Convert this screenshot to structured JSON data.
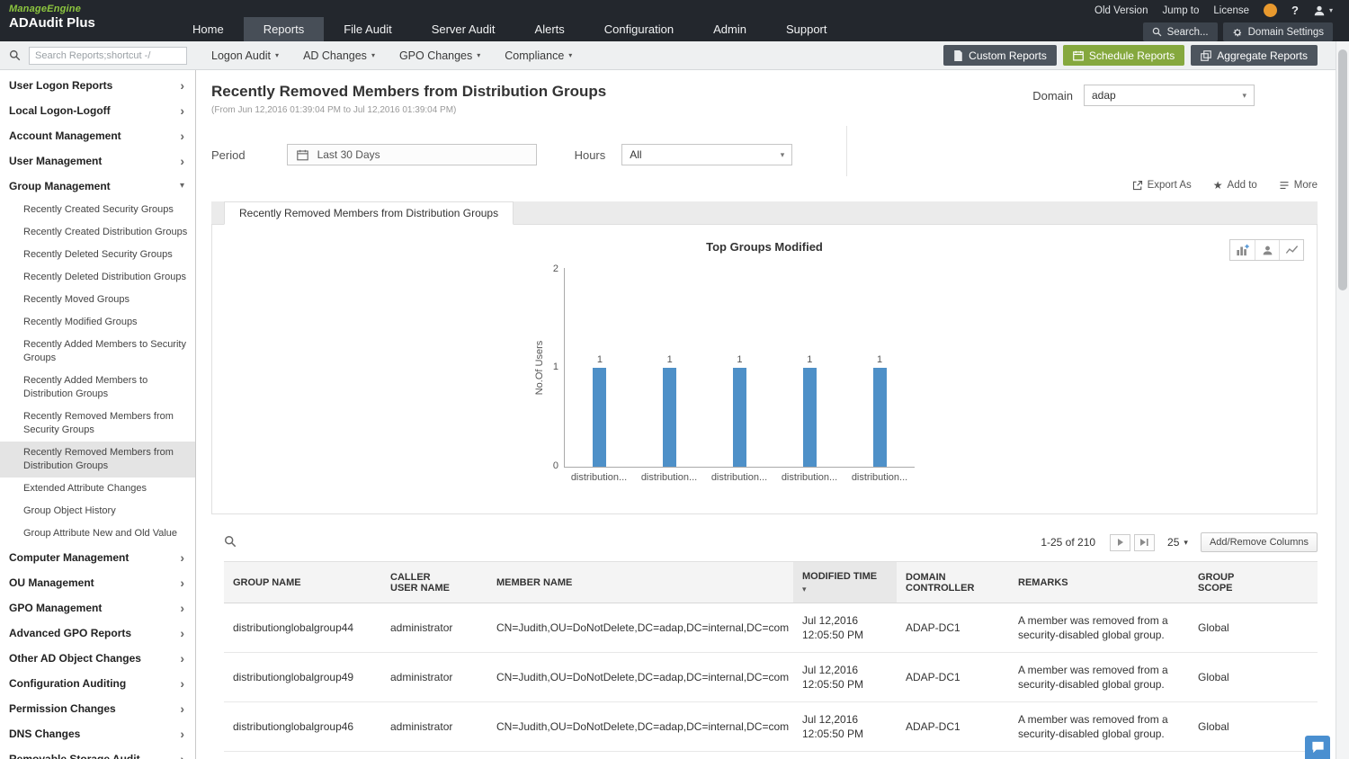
{
  "icons": {
    "caret_down": "▾",
    "chevron_right": "›",
    "star": "★",
    "help": "?",
    "sort_desc": "▾"
  },
  "topbar": {
    "company": "ManageEngine",
    "product": "ADAudit Plus",
    "utility_links": [
      "Old Version",
      "Jump to",
      "License"
    ],
    "nav": [
      "Home",
      "Reports",
      "File Audit",
      "Server Audit",
      "Alerts",
      "Configuration",
      "Admin",
      "Support"
    ],
    "active_nav": "Reports",
    "search_button": "Search...",
    "domain_settings_button": "Domain Settings"
  },
  "toolbar": {
    "search_placeholder": "Search Reports;shortcut -/",
    "menus": [
      "Logon Audit",
      "AD Changes",
      "GPO Changes",
      "Compliance"
    ],
    "buttons": {
      "custom_reports": "Custom Reports",
      "schedule_reports": "Schedule Reports",
      "aggregate_reports": "Aggregate Reports"
    }
  },
  "sidebar": {
    "items_top": [
      "User Logon Reports",
      "Local Logon-Logoff",
      "Account Management",
      "User Management"
    ],
    "group_management": "Group Management",
    "group_children": [
      "Recently Created Security Groups",
      "Recently Created Distribution Groups",
      "Recently Deleted Security Groups",
      "Recently Deleted Distribution Groups",
      "Recently Moved Groups",
      "Recently Modified Groups",
      "Recently Added Members to Security Groups",
      "Recently Added Members to Distribution Groups",
      "Recently Removed Members from Security Groups",
      "Recently Removed Members from Distribution Groups",
      "Extended Attribute Changes",
      "Group Object History",
      "Group Attribute New and Old Value"
    ],
    "selected_child": "Recently Removed Members from Distribution Groups",
    "items_bottom": [
      "Computer Management",
      "OU Management",
      "GPO Management",
      "Advanced GPO Reports",
      "Other AD Object Changes",
      "Configuration Auditing",
      "Permission Changes",
      "DNS Changes",
      "Removable Storage Audit"
    ]
  },
  "report": {
    "title": "Recently Removed Members from Distribution Groups",
    "subtitle": "(From Jun 12,2016 01:39:04 PM to Jul 12,2016 01:39:04 PM)",
    "domain_label": "Domain",
    "domain_value": "adap",
    "period_label": "Period",
    "period_value": "Last 30 Days",
    "hours_label": "Hours",
    "hours_value": "All",
    "actions": {
      "export_as": "Export As",
      "add_to": "Add to",
      "more": "More"
    },
    "tab": "Recently Removed Members from Distribution Groups"
  },
  "chart_data": {
    "type": "bar",
    "title": "Top Groups Modified",
    "ylabel": "No.Of Users",
    "ylim": [
      0,
      2
    ],
    "yticks": [
      2,
      1,
      0
    ],
    "categories": [
      "distribution...",
      "distribution...",
      "distribution...",
      "distribution...",
      "distribution..."
    ],
    "values": [
      1,
      1,
      1,
      1,
      1
    ],
    "bar_color": "#4e90c8",
    "grid": false,
    "legend_position": "none"
  },
  "table": {
    "pagination": {
      "range": "1-25 of 210",
      "page_size": "25"
    },
    "add_remove_columns": "Add/Remove Columns",
    "headers": [
      "GROUP NAME",
      "CALLER USER NAME",
      "MEMBER NAME",
      "MODIFIED TIME",
      "DOMAIN CONTROLLER",
      "REMARKS",
      "GROUP SCOPE"
    ],
    "sorted_column": "MODIFIED TIME",
    "rows": [
      {
        "group_name": "distributionglobalgroup44",
        "caller_user_name": "administrator",
        "member_name": "CN=Judith,OU=DoNotDelete,DC=adap,DC=internal,DC=com",
        "modified_time": "Jul 12,2016 12:05:50 PM",
        "domain_controller": "ADAP-DC1",
        "remarks": "A member was removed from a security-disabled global group.",
        "group_scope": "Global"
      },
      {
        "group_name": "distributionglobalgroup49",
        "caller_user_name": "administrator",
        "member_name": "CN=Judith,OU=DoNotDelete,DC=adap,DC=internal,DC=com",
        "modified_time": "Jul 12,2016 12:05:50 PM",
        "domain_controller": "ADAP-DC1",
        "remarks": "A member was removed from a security-disabled global group.",
        "group_scope": "Global"
      },
      {
        "group_name": "distributionglobalgroup46",
        "caller_user_name": "administrator",
        "member_name": "CN=Judith,OU=DoNotDelete,DC=adap,DC=internal,DC=com",
        "modified_time": "Jul 12,2016 12:05:50 PM",
        "domain_controller": "ADAP-DC1",
        "remarks": "A member was removed from a security-disabled global group.",
        "group_scope": "Global"
      }
    ]
  }
}
